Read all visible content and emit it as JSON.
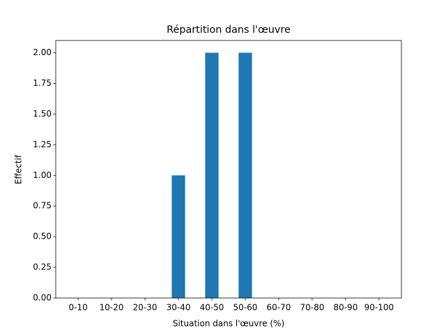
{
  "chart_data": {
    "type": "bar",
    "title": "Répartition dans l'œuvre",
    "x_label": "Situation dans l'œuvre (%)",
    "y_label": "Effectif",
    "categories": [
      "0-10",
      "10-20",
      "20-30",
      "30-40",
      "40-50",
      "50-60",
      "60-70",
      "70-80",
      "80-90",
      "90-100"
    ],
    "values": [
      0,
      0,
      0,
      1,
      2,
      2,
      0,
      0,
      0,
      0
    ],
    "color": "#1f77b4",
    "ylim": [
      0,
      2.1
    ],
    "yticks": [
      {
        "value": 0,
        "label": "0.00"
      },
      {
        "value": 0.25,
        "label": "0.25"
      },
      {
        "value": 0.5,
        "label": "0.50"
      },
      {
        "value": 0.75,
        "label": "0.75"
      },
      {
        "value": 1,
        "label": "1.00"
      },
      {
        "value": 1.25,
        "label": "1.25"
      },
      {
        "value": 1.5,
        "label": "1.50"
      },
      {
        "value": 1.75,
        "label": "1.75"
      },
      {
        "value": 2,
        "label": "2.00"
      }
    ],
    "grid": false
  }
}
